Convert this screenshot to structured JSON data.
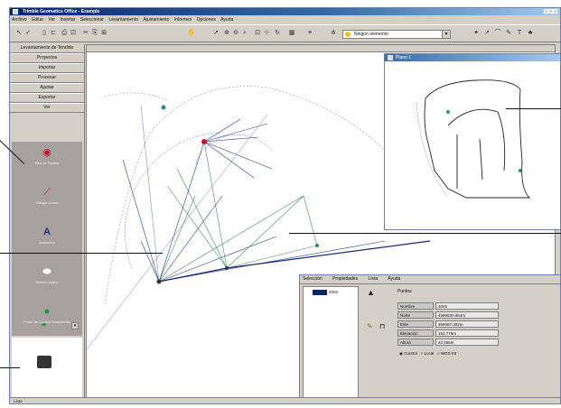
{
  "window": {
    "title": "Trimble Geomatics Office - Example",
    "controls": [
      "_",
      "□",
      "x"
    ]
  },
  "menu": [
    "Archivo",
    "Editar",
    "Ver",
    "Insertar",
    "Seleccionar",
    "Levantamiento",
    "Ajustamiento",
    "Informes",
    "Opciones",
    "Ayuda"
  ],
  "toolbar": {
    "combo_value": "Ningún elemento"
  },
  "sidebar": {
    "header": "Levantamiento de Tendido",
    "buttons": [
      "Proyectos",
      "Importar",
      "Procesar",
      "Ajustar",
      "Exportar",
      "Ver"
    ],
    "tools": [
      {
        "icon": "target-icon",
        "label": "Red de Puntos"
      },
      {
        "icon": "measure-icon",
        "label": "Dibujar Línea"
      },
      {
        "icon": "text-icon",
        "label": "Anotación"
      },
      {
        "icon": "eraser-icon",
        "label": "Borrar Objeto"
      },
      {
        "icon": "point-icon",
        "label": "Punto de Control Establecido"
      }
    ]
  },
  "child_window": {
    "title": "Plano 1"
  },
  "properties": {
    "tabs": [
      "Selección",
      "Propiedades",
      "Lista",
      "Ayuda"
    ],
    "tree_item": "4002",
    "panel_title": "Puntos",
    "fields": [
      {
        "key": "Nombre",
        "value": "4002"
      },
      {
        "key": "Norte",
        "value": "4590820.854m"
      },
      {
        "key": "Este",
        "value": "359087.302m"
      },
      {
        "key": "Elevación",
        "value": "153.778m"
      },
      {
        "key": "Altura",
        "value": "23.456m"
      }
    ],
    "radios": [
      "Control",
      "Local",
      "WGS-84"
    ]
  },
  "status": {
    "text": "Listo"
  }
}
